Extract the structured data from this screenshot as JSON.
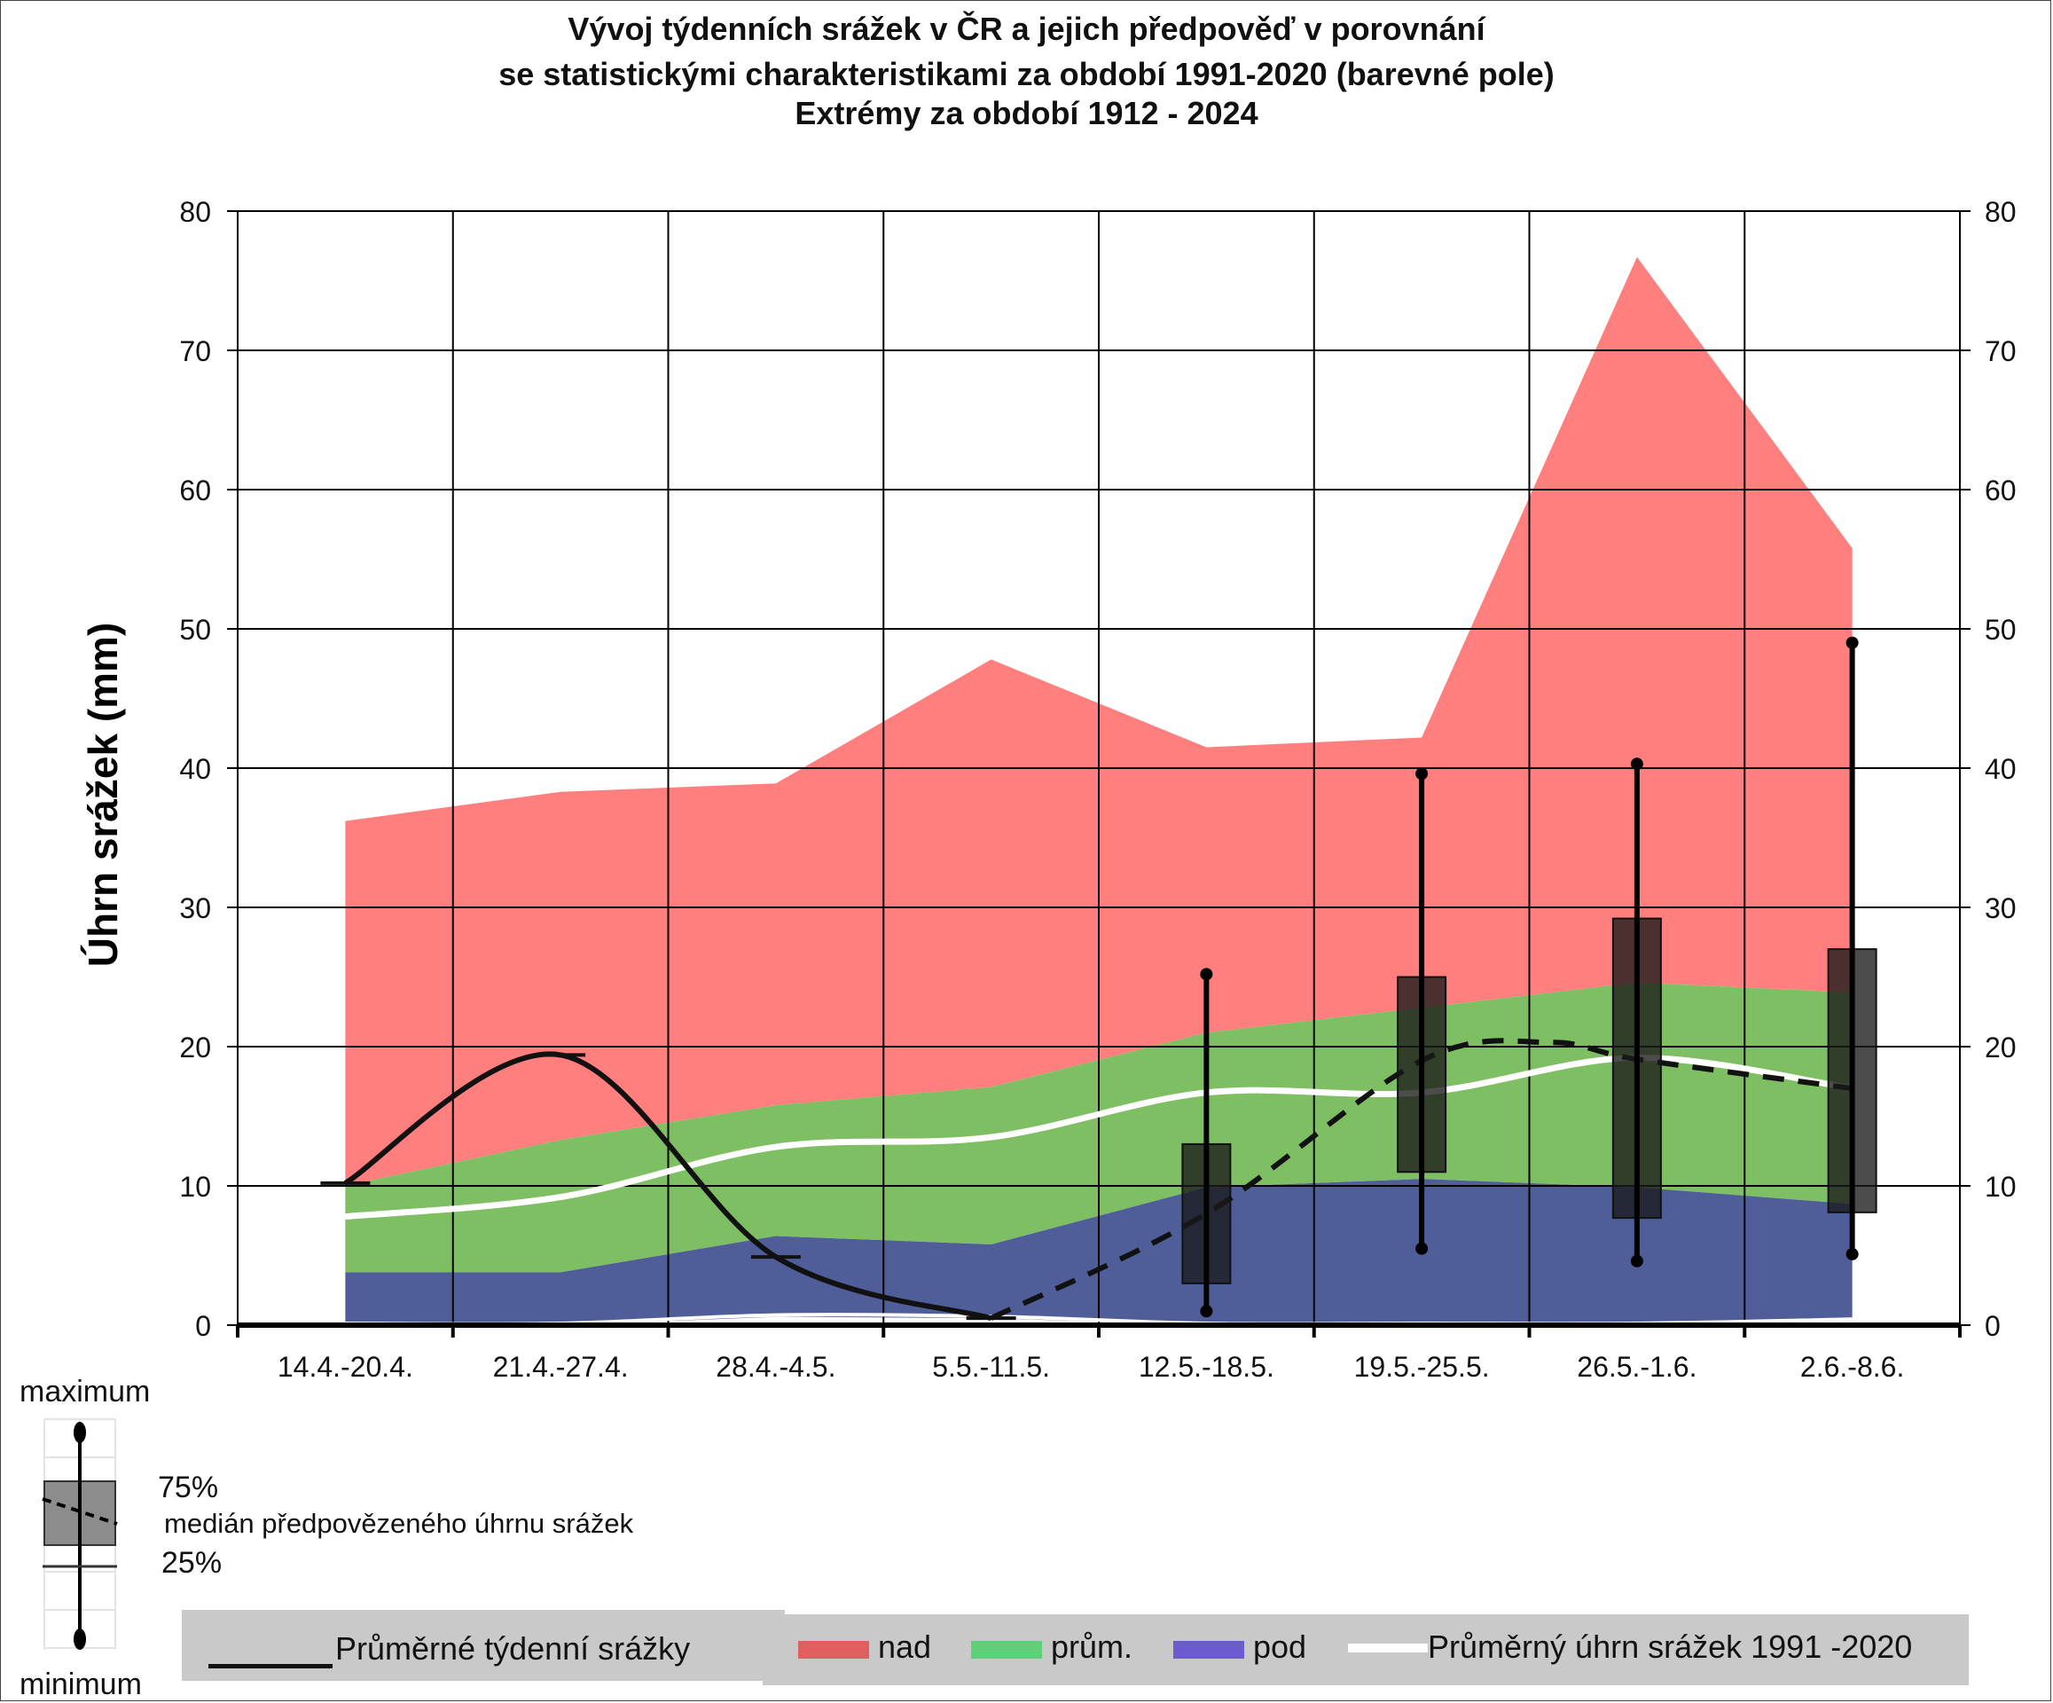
{
  "title": {
    "line1": "Vývoj týdenních srážek v ČR a jejich předpověď v porovnání",
    "line2": "se statistickými charakteristikami za období 1991-2020 (barevné pole)",
    "line3": "Extrémy za období 1912 - 2024"
  },
  "chart_data": {
    "type": "area",
    "ylabel": "Úhrn srážek (mm)",
    "ylim": [
      0,
      80
    ],
    "yticks": [
      "0",
      "10",
      "20",
      "30",
      "40",
      "50",
      "60",
      "70",
      "80"
    ],
    "grid": true,
    "categories": [
      "14.4.-20.4.",
      "21.4.-27.4.",
      "28.4.-4.5.",
      "5.5.-11.5.",
      "12.5.-18.5.",
      "19.5.-25.5.",
      "26.5.-1.6.",
      "2.6.-8.6."
    ],
    "bands": {
      "nad_upper": [
        36.2,
        38.3,
        38.9,
        47.8,
        41.5,
        42.2,
        76.7,
        55.8
      ],
      "prum_upper": [
        10.0,
        13.3,
        15.8,
        17.1,
        21.0,
        22.8,
        24.6,
        23.9
      ],
      "pod_upper": [
        3.8,
        3.8,
        6.4,
        5.8,
        9.9,
        10.5,
        9.9,
        8.7
      ],
      "min": [
        0.0,
        0.0,
        0.6,
        0.5,
        0.0,
        0.0,
        0.0,
        0.3
      ]
    },
    "band_colors": {
      "nad": "#ff7f7f",
      "prum": "#7fbf64",
      "pod": "#4f5e99"
    },
    "mean_1991_2020": [
      7.8,
      9.2,
      12.8,
      13.5,
      16.7,
      16.7,
      19.2,
      17.0
    ],
    "observed_weekly": [
      10.2,
      19.4,
      4.9,
      0.5
    ],
    "forecast_median": [
      0.5,
      8.0,
      19.0,
      20.3,
      19.1,
      17.0
    ],
    "forecast_median_x": [
      3,
      4,
      5,
      5.6,
      6,
      7
    ],
    "forecast": [
      {
        "category": "12.5.-18.5.",
        "min": 1.0,
        "q25": 3.0,
        "q75": 13.0,
        "max": 25.2
      },
      {
        "category": "19.5.-25.5.",
        "min": 5.5,
        "q25": 11.0,
        "q75": 25.0,
        "max": 39.6
      },
      {
        "category": "26.5.-1.6.",
        "min": 4.6,
        "q25": 7.7,
        "q75": 29.2,
        "max": 40.3
      },
      {
        "category": "2.6.-8.6.",
        "min": 5.1,
        "q25": 8.1,
        "q75": 27.0,
        "max": 49.0
      }
    ]
  },
  "legend": {
    "observed": "Průměrné týdenní srážky",
    "nad": "nad",
    "prum": "prům.",
    "pod": "pod",
    "mean": "Průměrný úhrn srážek 1991 -2020"
  },
  "box_legend": {
    "maximum": "maximum",
    "q75": "75%",
    "median": "medián předpovězeného úhrnu srážek",
    "q25": "25%",
    "minimum": "minimum"
  }
}
